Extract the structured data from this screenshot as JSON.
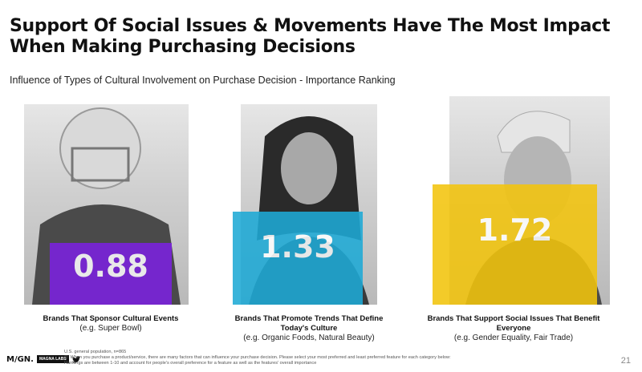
{
  "title": "Support Of Social Issues & Movements Have The Most Impact When Making Purchasing Decisions",
  "subtitle": "Influence of Types of Cultural Involvement on Purchase Decision - Importance Ranking",
  "chart_data": {
    "type": "bar",
    "categories": [
      "Brands That Sponsor Cultural Events",
      "Brands That Promote Trends That Define Today's Culture",
      "Brands That Support Social Issues That Benefit Everyone"
    ],
    "category_examples": [
      "(e.g. Super Bowl)",
      "(e.g. Organic Foods, Natural Beauty)",
      "(e.g. Gender Equality, Fair Trade)"
    ],
    "values": [
      0.88,
      1.33,
      1.72
    ],
    "value_labels": [
      "0.88",
      "1.33",
      "1.72"
    ],
    "colors": [
      "#7c22e0",
      "#1eaad6",
      "#f2c40c"
    ],
    "ylim": [
      0,
      2.3
    ],
    "grid": false,
    "legend": "none",
    "title": "Influence of Types of Cultural Involvement on Purchase Decision - Importance Ranking"
  },
  "footer": {
    "logo": "M/GN.",
    "logo_badge": "MAGNA LABS",
    "logo_icon": "twitter-bird-icon",
    "notes": [
      "U.S. general population, n=865",
      "Q: When you purchase a product/service, there are many factors that can influence your purchase decision. Please select your most preferred and least preferred feature for each category below:",
      "Rankings are between 1-10 and account for people's overall preference for a feature as well as the features' overall importance"
    ],
    "page_number": "21"
  }
}
